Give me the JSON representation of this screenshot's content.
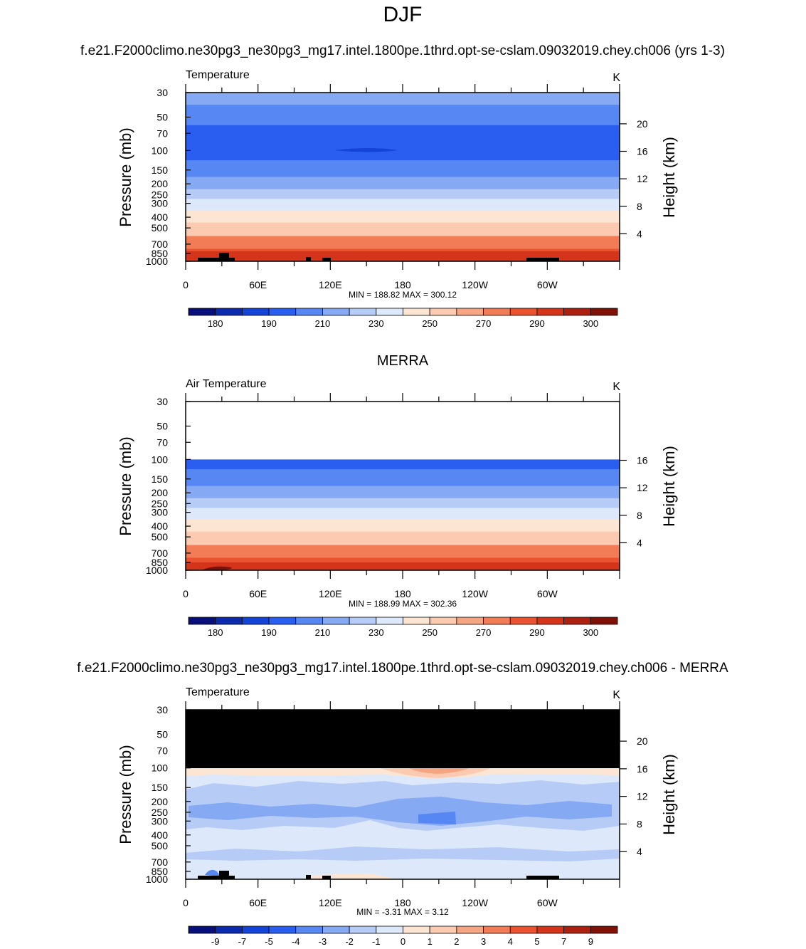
{
  "figure": {
    "title": "DJF",
    "subtitle_top": "f.e21.F2000climo.ne30pg3_ne30pg3_mg17.intel.1800pe.1thrd.opt-se-cslam.09032019.chey.ch006 (yrs 1-3)",
    "title_middle": "MERRA",
    "title_bottom": "f.e21.F2000climo.ne30pg3_ne30pg3_mg17.intel.1800pe.1thrd.opt-se-cslam.09032019.chey.ch006 - MERRA"
  },
  "chart_data": [
    {
      "type": "heatmap",
      "variable": "Temperature",
      "units": "K",
      "ylabel_left": "Pressure (mb)",
      "ylabel_right": "Height (km)",
      "x_ticks": [
        "0",
        "60E",
        "120E",
        "180",
        "120W",
        "60W"
      ],
      "p_ticks": [
        "30",
        "50",
        "70",
        "100",
        "150",
        "200",
        "250",
        "300",
        "400",
        "500",
        "700",
        "850",
        "1000"
      ],
      "height_ticks": [
        "20",
        "16",
        "12",
        "8",
        "4"
      ],
      "stats": "MIN = 188.82  MAX = 300.12",
      "colorbar_labels": [
        "180",
        "190",
        "210",
        "230",
        "250",
        "270",
        "290",
        "300"
      ],
      "profile": [
        [
          30,
          215
        ],
        [
          50,
          205
        ],
        [
          70,
          196
        ],
        [
          100,
          192
        ],
        [
          150,
          200
        ],
        [
          200,
          212
        ],
        [
          250,
          222
        ],
        [
          300,
          232
        ],
        [
          400,
          247
        ],
        [
          500,
          258
        ],
        [
          700,
          276
        ],
        [
          850,
          287
        ],
        [
          1000,
          298
        ]
      ]
    },
    {
      "type": "heatmap",
      "variable": "Air Temperature",
      "units": "K",
      "ylabel_left": "Pressure (mb)",
      "ylabel_right": "Height (km)",
      "x_ticks": [
        "0",
        "60E",
        "120E",
        "180",
        "120W",
        "60W"
      ],
      "p_ticks": [
        "30",
        "50",
        "70",
        "100",
        "150",
        "200",
        "250",
        "300",
        "400",
        "500",
        "700",
        "850",
        "1000"
      ],
      "height_ticks": [
        "16",
        "12",
        "8",
        "4"
      ],
      "stats": "MIN = 188.99  MAX = 302.36",
      "colorbar_labels": [
        "180",
        "190",
        "210",
        "230",
        "250",
        "270",
        "290",
        "300"
      ],
      "profile": [
        [
          100,
          192
        ],
        [
          150,
          200
        ],
        [
          200,
          212
        ],
        [
          250,
          222
        ],
        [
          300,
          232
        ],
        [
          400,
          247
        ],
        [
          500,
          258
        ],
        [
          700,
          276
        ],
        [
          850,
          288
        ],
        [
          1000,
          299
        ]
      ]
    },
    {
      "type": "heatmap",
      "variable": "Temperature",
      "units": "K",
      "ylabel_left": "Pressure (mb)",
      "ylabel_right": "Height (km)",
      "x_ticks": [
        "0",
        "60E",
        "120E",
        "180",
        "120W",
        "60W"
      ],
      "p_ticks": [
        "30",
        "50",
        "70",
        "100",
        "150",
        "200",
        "250",
        "300",
        "400",
        "500",
        "700",
        "850",
        "1000"
      ],
      "height_ticks": [
        "20",
        "16",
        "12",
        "8",
        "4"
      ],
      "stats": "MIN =  -3.31   MAX =   3.12",
      "colorbar_labels": [
        "-9",
        "-7",
        "-5",
        "-4",
        "-3",
        "-2",
        "-1",
        "0",
        "1",
        "2",
        "3",
        "4",
        "5",
        "7",
        "9"
      ],
      "missing_above_mb": 100
    }
  ],
  "colors": {
    "temperature_scale": [
      "#080e7a",
      "#0b2aad",
      "#1443d8",
      "#2a5ef0",
      "#5787f2",
      "#86a9f4",
      "#b6ccf7",
      "#dde9fb",
      "#fde5d3",
      "#fbcab0",
      "#f6a582",
      "#f27c56",
      "#eb5330",
      "#d4341a",
      "#ac2010",
      "#7f1106"
    ],
    "missing": "#000000"
  }
}
